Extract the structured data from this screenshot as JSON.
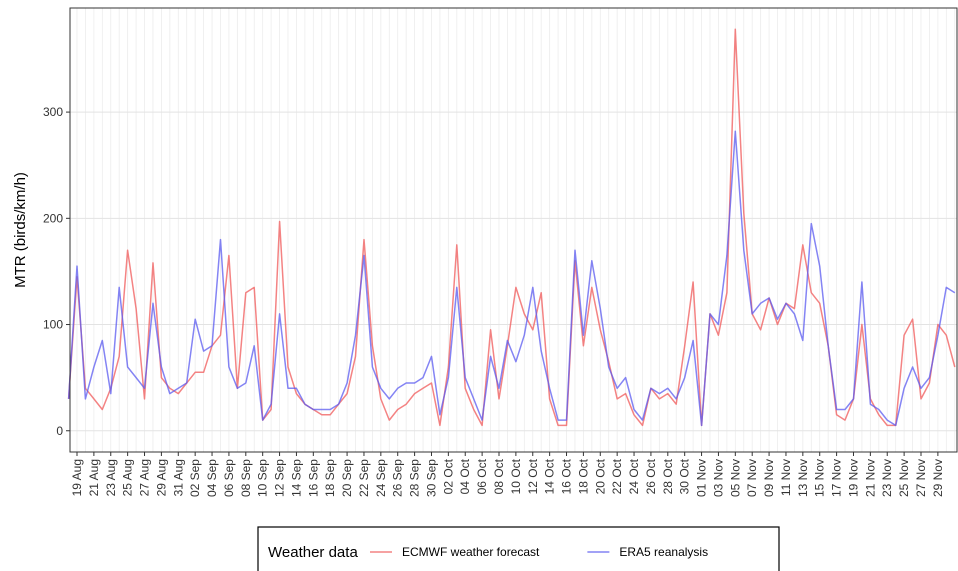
{
  "chart_data": {
    "type": "line",
    "y_label": "MTR (birds/km/h)",
    "legend_title": "Weather data",
    "legend_position": "bottom",
    "grid": true,
    "ylim": [
      -20,
      398
    ],
    "yticks": [
      0,
      100,
      200,
      300
    ],
    "x": [
      "18 Aug",
      "19 Aug",
      "20 Aug",
      "21 Aug",
      "22 Aug",
      "23 Aug",
      "24 Aug",
      "25 Aug",
      "26 Aug",
      "27 Aug",
      "28 Aug",
      "29 Aug",
      "30 Aug",
      "31 Aug",
      "01 Sep",
      "02 Sep",
      "03 Sep",
      "04 Sep",
      "05 Sep",
      "06 Sep",
      "07 Sep",
      "08 Sep",
      "09 Sep",
      "10 Sep",
      "11 Sep",
      "12 Sep",
      "13 Sep",
      "14 Sep",
      "15 Sep",
      "16 Sep",
      "17 Sep",
      "18 Sep",
      "19 Sep",
      "20 Sep",
      "21 Sep",
      "22 Sep",
      "23 Sep",
      "24 Sep",
      "25 Sep",
      "26 Sep",
      "27 Sep",
      "28 Sep",
      "29 Sep",
      "30 Sep",
      "01 Oct",
      "02 Oct",
      "03 Oct",
      "04 Oct",
      "05 Oct",
      "06 Oct",
      "07 Oct",
      "08 Oct",
      "09 Oct",
      "10 Oct",
      "11 Oct",
      "12 Oct",
      "13 Oct",
      "14 Oct",
      "15 Oct",
      "16 Oct",
      "17 Oct",
      "18 Oct",
      "19 Oct",
      "20 Oct",
      "21 Oct",
      "22 Oct",
      "23 Oct",
      "24 Oct",
      "25 Oct",
      "26 Oct",
      "27 Oct",
      "28 Oct",
      "29 Oct",
      "30 Oct",
      "31 Oct",
      "01 Nov",
      "02 Nov",
      "03 Nov",
      "04 Nov",
      "05 Nov",
      "06 Nov",
      "07 Nov",
      "08 Nov",
      "09 Nov",
      "10 Nov",
      "11 Nov",
      "12 Nov",
      "13 Nov",
      "14 Nov",
      "15 Nov",
      "16 Nov",
      "17 Nov",
      "18 Nov",
      "19 Nov",
      "20 Nov",
      "21 Nov",
      "22 Nov",
      "23 Nov",
      "24 Nov",
      "25 Nov",
      "26 Nov",
      "27 Nov",
      "28 Nov",
      "29 Nov",
      "30 Nov",
      "01 Dec"
    ],
    "xticks": [
      "19 Aug",
      "21 Aug",
      "23 Aug",
      "25 Aug",
      "27 Aug",
      "29 Aug",
      "31 Aug",
      "02 Sep",
      "04 Sep",
      "06 Sep",
      "08 Sep",
      "10 Sep",
      "12 Sep",
      "14 Sep",
      "16 Sep",
      "18 Sep",
      "20 Sep",
      "22 Sep",
      "24 Sep",
      "26 Sep",
      "28 Sep",
      "30 Sep",
      "02 Oct",
      "04 Oct",
      "06 Oct",
      "08 Oct",
      "10 Oct",
      "12 Oct",
      "14 Oct",
      "16 Oct",
      "18 Oct",
      "20 Oct",
      "22 Oct",
      "24 Oct",
      "26 Oct",
      "28 Oct",
      "30 Oct",
      "01 Nov",
      "03 Nov",
      "05 Nov",
      "07 Nov",
      "09 Nov",
      "11 Nov",
      "13 Nov",
      "15 Nov",
      "17 Nov",
      "19 Nov",
      "21 Nov",
      "23 Nov",
      "25 Nov",
      "27 Nov",
      "29 Nov"
    ],
    "series": [
      {
        "name": "ECMWF weather forecast",
        "color": "#f0595a",
        "values": [
          30,
          145,
          40,
          30,
          20,
          40,
          70,
          170,
          115,
          30,
          158,
          50,
          40,
          35,
          45,
          55,
          55,
          80,
          90,
          165,
          40,
          130,
          135,
          10,
          20,
          197,
          60,
          35,
          25,
          20,
          15,
          15,
          25,
          35,
          70,
          180,
          80,
          30,
          10,
          20,
          25,
          35,
          40,
          45,
          5,
          60,
          175,
          40,
          20,
          5,
          95,
          30,
          80,
          135,
          110,
          95,
          130,
          30,
          5,
          5,
          160,
          80,
          135,
          95,
          65,
          30,
          35,
          15,
          5,
          40,
          30,
          35,
          25,
          80,
          140,
          5,
          110,
          90,
          130,
          378,
          205,
          110,
          95,
          125,
          100,
          120,
          115,
          175,
          130,
          120,
          80,
          15,
          10,
          30,
          100,
          30,
          15,
          5,
          5,
          90,
          105,
          30,
          45,
          100,
          90,
          60
        ]
      },
      {
        "name": "ERA5 reanalysis",
        "color": "#5b5bf0",
        "values": [
          30,
          155,
          30,
          60,
          85,
          35,
          135,
          60,
          50,
          40,
          120,
          60,
          35,
          40,
          45,
          105,
          75,
          80,
          180,
          60,
          40,
          45,
          80,
          10,
          25,
          110,
          40,
          40,
          25,
          20,
          20,
          20,
          25,
          45,
          90,
          165,
          60,
          40,
          30,
          40,
          45,
          45,
          50,
          70,
          15,
          50,
          135,
          50,
          30,
          10,
          70,
          40,
          85,
          65,
          90,
          135,
          75,
          40,
          10,
          10,
          170,
          90,
          160,
          115,
          60,
          40,
          50,
          20,
          10,
          40,
          35,
          40,
          30,
          50,
          85,
          5,
          110,
          100,
          165,
          282,
          170,
          110,
          120,
          125,
          105,
          120,
          110,
          85,
          195,
          155,
          80,
          20,
          20,
          30,
          140,
          25,
          20,
          10,
          5,
          40,
          60,
          40,
          50,
          90,
          135,
          130
        ]
      }
    ]
  }
}
